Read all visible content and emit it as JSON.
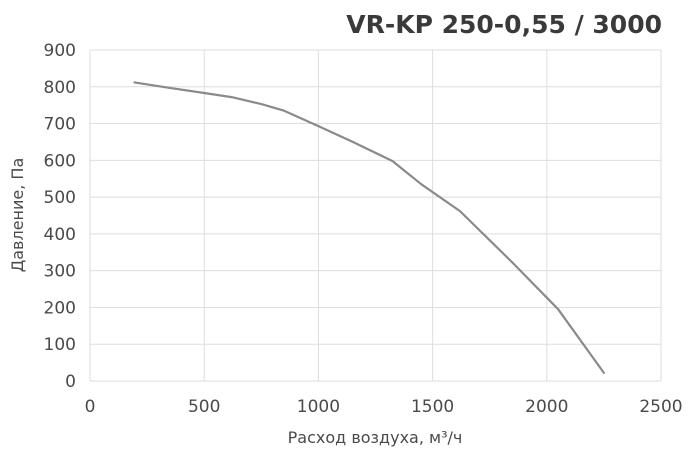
{
  "chart_data": {
    "type": "line",
    "title": "VR-KP 250-0,55 / 3000",
    "xlabel": "Расход воздуха, м³/ч",
    "ylabel": "Давление, Па",
    "xlim": [
      0,
      2500
    ],
    "ylim": [
      0,
      900
    ],
    "xticks": [
      "0",
      "500",
      "1000",
      "1500",
      "2000",
      "2500"
    ],
    "yticks": [
      "0",
      "100",
      "200",
      "300",
      "400",
      "500",
      "600",
      "700",
      "800",
      "900"
    ],
    "grid": true,
    "legend": "none",
    "colors": {
      "line": "#8a8a8a",
      "grid": "#dedede",
      "text": "#4a4a4a"
    },
    "series": [
      {
        "x": [
          195,
          350,
          500,
          620,
          750,
          850,
          1000,
          1150,
          1325,
          1450,
          1620,
          1850,
          2050,
          2250
        ],
        "y": [
          812,
          797,
          783,
          772,
          753,
          735,
          693,
          650,
          598,
          535,
          462,
          322,
          195,
          22
        ]
      }
    ]
  }
}
